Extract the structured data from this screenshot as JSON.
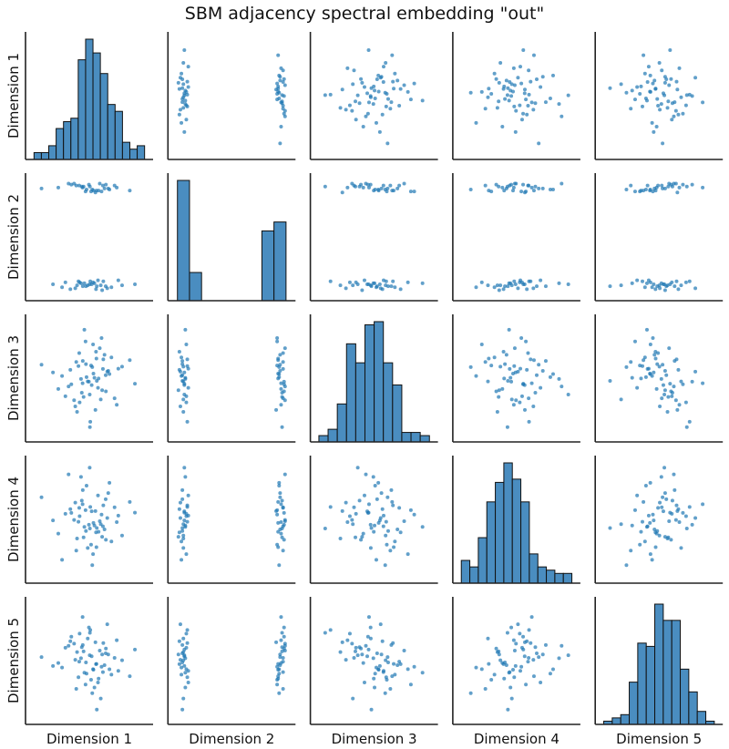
{
  "chart_data": {
    "type": "pairplot",
    "title": "SBM adjacency spectral embedding \"out\"",
    "variables": [
      "Dimension 1",
      "Dimension 2",
      "Dimension 3",
      "Dimension 4",
      "Dimension 5"
    ],
    "diagonal": "histogram",
    "offdiagonal": "scatter",
    "grid": false,
    "ticks": false,
    "colors": {
      "point": "#1f77b4",
      "bar": "#4a8dc0",
      "bar_edge": "#111111",
      "axis": "#222222"
    },
    "axis_ranges": [
      [
        -3,
        3
      ],
      [
        -0.1,
        1.1
      ],
      [
        -3,
        3
      ],
      [
        -3,
        3
      ],
      [
        -3,
        3
      ]
    ],
    "histograms": [
      {
        "range": [
          -2.8,
          2.8
        ],
        "counts": [
          2,
          2,
          4,
          9,
          11,
          12,
          29,
          35,
          31,
          25,
          16,
          14,
          5,
          3,
          4
        ]
      },
      {
        "range": [
          -0.05,
          1.05
        ],
        "counts": [
          81,
          19,
          0,
          0,
          0,
          0,
          0,
          47,
          53
        ]
      },
      {
        "range": [
          -2.8,
          2.8
        ],
        "counts": [
          2,
          4,
          12,
          31,
          25,
          37,
          38,
          25,
          18,
          3,
          3,
          2
        ]
      },
      {
        "range": [
          -2.8,
          2.8
        ],
        "counts": [
          7,
          5,
          14,
          25,
          31,
          37,
          32,
          25,
          9,
          5,
          4,
          3,
          3
        ]
      },
      {
        "range": [
          -2.8,
          2.8
        ],
        "counts": [
          1,
          2,
          3,
          13,
          25,
          24,
          37,
          32,
          32,
          17,
          10,
          4,
          1
        ]
      }
    ],
    "nodes": [
      [
        0.12,
        0.02,
        -0.35,
        0.41,
        0.22
      ],
      [
        -0.55,
        0.05,
        0.61,
        -0.12,
        -0.84
      ],
      [
        0.83,
        0.0,
        0.15,
        1.02,
        0.37
      ],
      [
        -1.21,
        0.04,
        -0.92,
        0.28,
        0.65
      ],
      [
        0.34,
        -0.03,
        1.34,
        -0.66,
        -0.18
      ],
      [
        -0.08,
        0.01,
        -0.17,
        -1.45,
        1.12
      ],
      [
        1.47,
        0.06,
        0.48,
        0.19,
        -0.52
      ],
      [
        -0.71,
        -0.02,
        -1.43,
        0.85,
        0.04
      ],
      [
        0.26,
        0.03,
        0.02,
        -0.31,
        -1.36
      ],
      [
        -0.33,
        0.0,
        0.87,
        1.48,
        0.79
      ],
      [
        0.65,
        -0.04,
        -0.61,
        -0.88,
        0.31
      ],
      [
        -1.84,
        0.02,
        0.29,
        -0.05,
        -0.27
      ],
      [
        0.05,
        0.05,
        -2.21,
        0.63,
        1.55
      ],
      [
        1.12,
        -0.01,
        1.05,
        -1.12,
        -0.71
      ],
      [
        -0.42,
        0.03,
        -0.04,
        2.15,
        0.12
      ],
      [
        0.58,
        0.01,
        -1.08,
        -0.24,
        -1.92
      ],
      [
        -0.96,
        -0.03,
        0.42,
        0.52,
        0.98
      ],
      [
        0.19,
        0.04,
        1.71,
        -1.76,
        -0.43
      ],
      [
        2.31,
        0.02,
        -0.28,
        0.34,
        0.56
      ],
      [
        -0.17,
        0.0,
        0.71,
        -0.59,
        -0.09
      ],
      [
        0.44,
        0.06,
        -0.49,
        1.21,
        -1.11
      ],
      [
        -0.62,
        0.01,
        -1.71,
        -0.97,
        0.43
      ],
      [
        0.91,
        -0.02,
        0.33,
        0.07,
        1.84
      ],
      [
        -0.25,
        0.03,
        2.45,
        -0.38,
        -0.61
      ],
      [
        0.02,
        0.02,
        -0.83,
        2.62,
        0.27
      ],
      [
        -1.38,
        -0.01,
        0.11,
        -2.05,
        -0.35
      ],
      [
        0.71,
        0.05,
        0.95,
        0.71,
        0.89
      ],
      [
        0.38,
        0.0,
        -0.14,
        -0.44,
        -2.48
      ],
      [
        -0.49,
        0.04,
        -1.23,
        0.16,
        1.37
      ],
      [
        1.66,
        0.01,
        0.58,
        -0.82,
        0.02
      ],
      [
        0.21,
        0.97,
        0.23,
        -0.18,
        -0.46
      ],
      [
        -0.38,
        1.01,
        -0.74,
        0.95,
        0.68
      ],
      [
        0.77,
        0.99,
        1.18,
        -0.51,
        -0.23
      ],
      [
        -0.91,
        1.03,
        -0.31,
        0.33,
        1.21
      ],
      [
        0.09,
        0.96,
        0.64,
        -1.28,
        -0.97
      ],
      [
        1.28,
        1.02,
        -1.02,
        0.61,
        0.14
      ],
      [
        -0.14,
        0.98,
        0.05,
        1.71,
        -0.66
      ],
      [
        0.53,
        1.04,
        1.52,
        -0.09,
        0.51
      ],
      [
        -1.57,
        1.0,
        -0.55,
        -0.72,
        -0.12
      ],
      [
        0.31,
        0.95,
        -1.61,
        0.42,
        0.93
      ],
      [
        -0.66,
        1.02,
        0.82,
        -1.58,
        -1.43
      ],
      [
        0.96,
        0.99,
        0.37,
        1.33,
        0.31
      ],
      [
        -0.02,
        1.03,
        -0.18,
        -0.27,
        1.68
      ],
      [
        2.05,
        0.97,
        0.91,
        0.88,
        -0.79
      ],
      [
        -0.29,
        1.01,
        -0.95,
        -0.91,
        0.47
      ],
      [
        0.62,
        0.96,
        2.03,
        0.24,
        -0.31
      ],
      [
        -1.05,
        1.04,
        -0.42,
        2.28,
        0.75
      ],
      [
        0.15,
        0.98,
        0.56,
        -2.32,
        -1.65
      ],
      [
        1.39,
        1.0,
        -1.35,
        -0.14,
        1.03
      ],
      [
        -0.51,
        1.02,
        1.27,
        0.58,
        -0.05
      ],
      [
        0.47,
        0.97,
        -0.02,
        -0.63,
        -0.91
      ],
      [
        -2.42,
        0.99,
        0.68,
        1.12,
        0.18
      ],
      [
        0.84,
        1.03,
        -0.67,
        -1.03,
        0.61
      ],
      [
        -0.19,
        0.96,
        1.86,
        0.47,
        -1.21
      ],
      [
        0.03,
        1.01,
        -2.48,
        -0.46,
        1.41
      ],
      [
        1.02,
        0.98,
        0.21,
        1.85,
        -0.44
      ],
      [
        -0.77,
        1.04,
        -1.12,
        -0.03,
        0.86
      ],
      [
        0.36,
        0.97,
        0.99,
        -1.41,
        -0.17
      ],
      [
        -0.34,
        1.0,
        -0.26,
        0.77,
        2.21
      ],
      [
        0.69,
        1.02,
        0.47,
        -0.35,
        -0.58
      ]
    ]
  }
}
